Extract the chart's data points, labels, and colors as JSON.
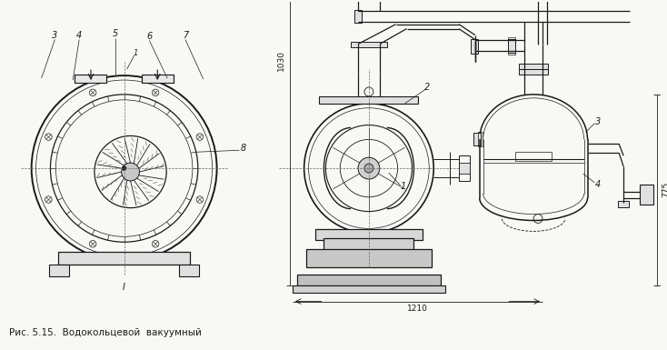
{
  "bg_color": "#f8f8f5",
  "line_color": "#1a1a1a",
  "title_text": "Рис. 5.15.  Водокольцевой  вакуумный",
  "fig_width": 7.34,
  "fig_height": 3.85,
  "dpi": 100,
  "dim_1030": "1030",
  "dim_775": "775",
  "dim_1210": "1210"
}
